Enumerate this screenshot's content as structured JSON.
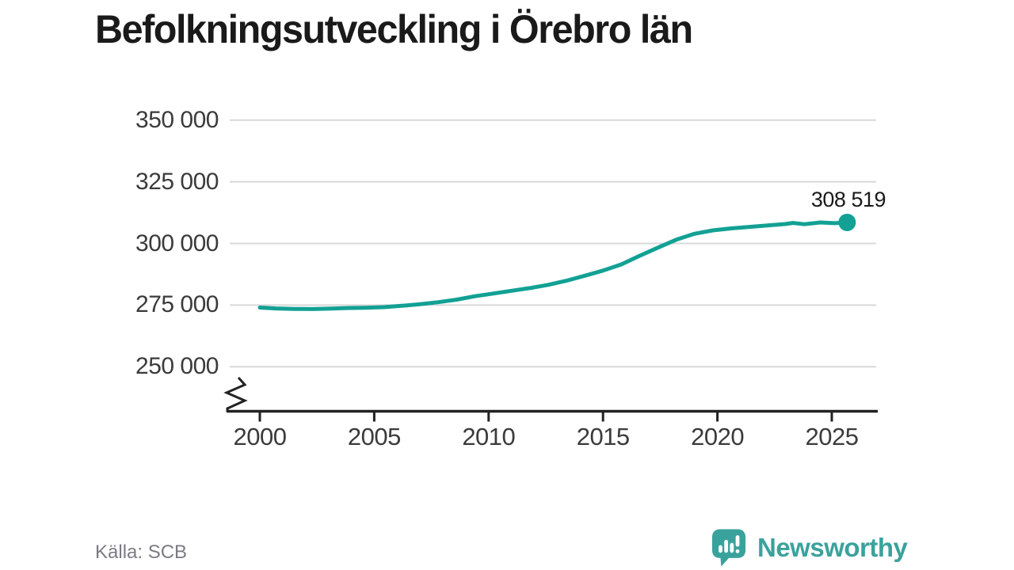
{
  "header": {
    "title": "Befolkningsutveckling i Örebro län"
  },
  "footer": {
    "source": "Källa: SCB",
    "logo_text": "Newsworthy"
  },
  "colors": {
    "line": "#12a194",
    "grid": "#d8d8d8",
    "axis": "#222222",
    "title": "#1a1a1a",
    "tick_label": "#3b3b3b",
    "source_text": "#7b7b84",
    "logo": "#3aa29c"
  },
  "chart_data": {
    "type": "line",
    "title": "Befolkningsutveckling i Örebro län",
    "xlabel": "",
    "ylabel": "",
    "grid": "horizontal",
    "axis_break": true,
    "legend_position": "none",
    "ylim": [
      250000,
      350000
    ],
    "xlim": [
      2000,
      2025.67
    ],
    "y_ticks": [
      250000,
      275000,
      300000,
      325000,
      350000
    ],
    "y_tick_labels": [
      "250 000",
      "275 000",
      "300 000",
      "325 000",
      "350 000"
    ],
    "x_ticks": [
      2000,
      2005,
      2010,
      2015,
      2020,
      2025
    ],
    "x_tick_labels": [
      "2000",
      "2005",
      "2010",
      "2015",
      "2020",
      "2025"
    ],
    "end_label": "308 519",
    "end_value": 308519,
    "x": [
      2000,
      2000.7,
      2001.5,
      2002.3,
      2003,
      2003.8,
      2004.6,
      2005.4,
      2006.2,
      2007,
      2007.8,
      2008.6,
      2009.4,
      2010.2,
      2011,
      2011.8,
      2012.6,
      2013.4,
      2014.2,
      2015,
      2015.8,
      2016.6,
      2017.4,
      2018.2,
      2019,
      2019.8,
      2020.6,
      2021.4,
      2022.2,
      2023,
      2023.3,
      2023.8,
      2024.5,
      2025.1,
      2025.67
    ],
    "values": [
      274000,
      273650,
      273450,
      273400,
      273550,
      273800,
      273950,
      274150,
      274700,
      275400,
      276200,
      277200,
      278600,
      279700,
      280800,
      281900,
      283200,
      284900,
      286900,
      289000,
      291500,
      295000,
      298300,
      301500,
      303900,
      305300,
      306100,
      306700,
      307300,
      307900,
      308300,
      307800,
      308500,
      308200,
      308519
    ]
  }
}
